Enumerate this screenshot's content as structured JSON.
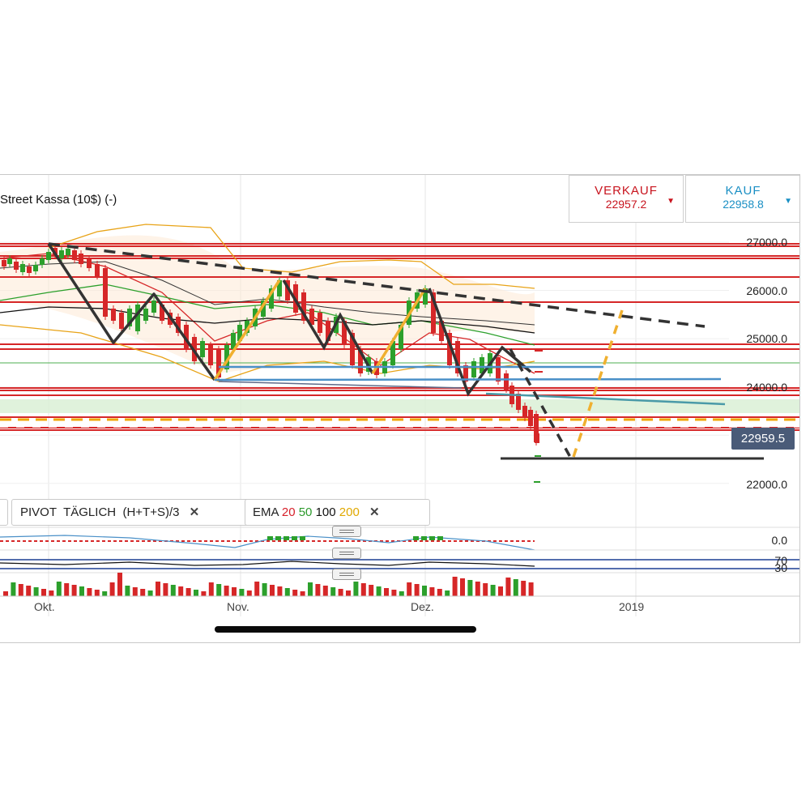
{
  "instrument": {
    "title": "Street Kassa (10$) (-)"
  },
  "quotes": {
    "sell": {
      "label": "VERKAUF",
      "value": "22957.2",
      "arrow": "▼"
    },
    "buy": {
      "label": "KAUF",
      "value": "22958.8",
      "arrow": "▼"
    }
  },
  "price_axis": {
    "labels": [
      "27000.0",
      "26000.0",
      "25000.0",
      "24000.0",
      "22000.0"
    ],
    "current_price": "22959.5"
  },
  "indicator_tags": {
    "pivot": {
      "name": "PIVOT",
      "period": "TÄGLICH",
      "formula": "(H+T+S)/3",
      "close": "✕"
    },
    "ema": {
      "name": "EMA",
      "p20": "20",
      "p50": "50",
      "p100": "100",
      "p200": "200",
      "close": "✕"
    }
  },
  "sub_panels": {
    "oscillator_zero": "0.0",
    "rsi_upper": "70",
    "rsi_lower": "30"
  },
  "time_axis": {
    "labels": [
      "Okt.",
      "Nov.",
      "Dez.",
      "2019"
    ]
  },
  "colors": {
    "sell": "#c8141e",
    "buy": "#1a8fc4",
    "up_candle": "#2ca02c",
    "down_candle": "#d62728",
    "pivot_line": "#d62728",
    "current_price_bg": "#4a5b78"
  }
}
